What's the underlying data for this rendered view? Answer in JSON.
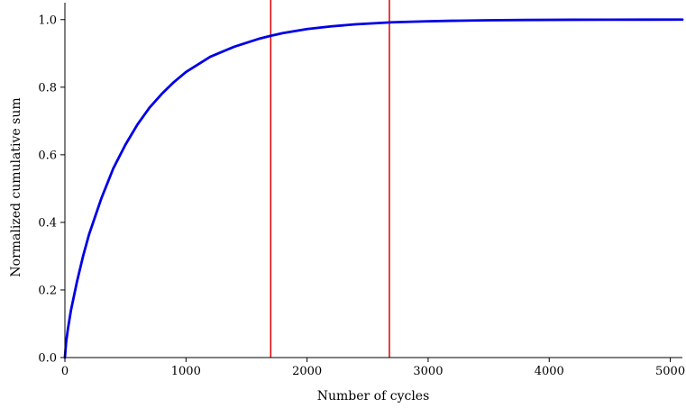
{
  "chart_data": {
    "type": "line",
    "title": "",
    "xlabel": "Number of cycles",
    "ylabel": "Normalized cumulative sum",
    "xlim": [
      0,
      5100
    ],
    "ylim": [
      0,
      1.05
    ],
    "x_ticks": [
      0,
      1000,
      2000,
      3000,
      4000,
      5000
    ],
    "x_tick_labels": [
      "0",
      "1000",
      "2000",
      "3000",
      "4000",
      "5000"
    ],
    "y_ticks": [
      0.0,
      0.2,
      0.4,
      0.6,
      0.8,
      1.0
    ],
    "y_tick_labels": [
      "0.0",
      "0.2",
      "0.4",
      "0.6",
      "0.8",
      "1.0"
    ],
    "grid": false,
    "series": [
      {
        "color": "#0000e6",
        "x": [
          0,
          10,
          25,
          50,
          100,
          150,
          200,
          300,
          400,
          500,
          600,
          700,
          800,
          900,
          1000,
          1200,
          1400,
          1600,
          1700,
          1800,
          2000,
          2200,
          2400,
          2600,
          2700,
          2800,
          3000,
          3200,
          3500,
          3800,
          4000,
          4200,
          4500,
          4800,
          5100
        ],
        "y": [
          0.0,
          0.045,
          0.085,
          0.14,
          0.225,
          0.3,
          0.365,
          0.47,
          0.56,
          0.63,
          0.69,
          0.74,
          0.78,
          0.815,
          0.845,
          0.89,
          0.92,
          0.943,
          0.952,
          0.96,
          0.972,
          0.98,
          0.986,
          0.99,
          0.992,
          0.993,
          0.995,
          0.9965,
          0.998,
          0.9988,
          0.9992,
          0.9995,
          0.9997,
          0.9999,
          1.0
        ]
      }
    ],
    "vertical_lines": [
      {
        "x": 1700,
        "color": "#dd0000"
      },
      {
        "x": 2680,
        "color": "#dd0000"
      }
    ]
  }
}
